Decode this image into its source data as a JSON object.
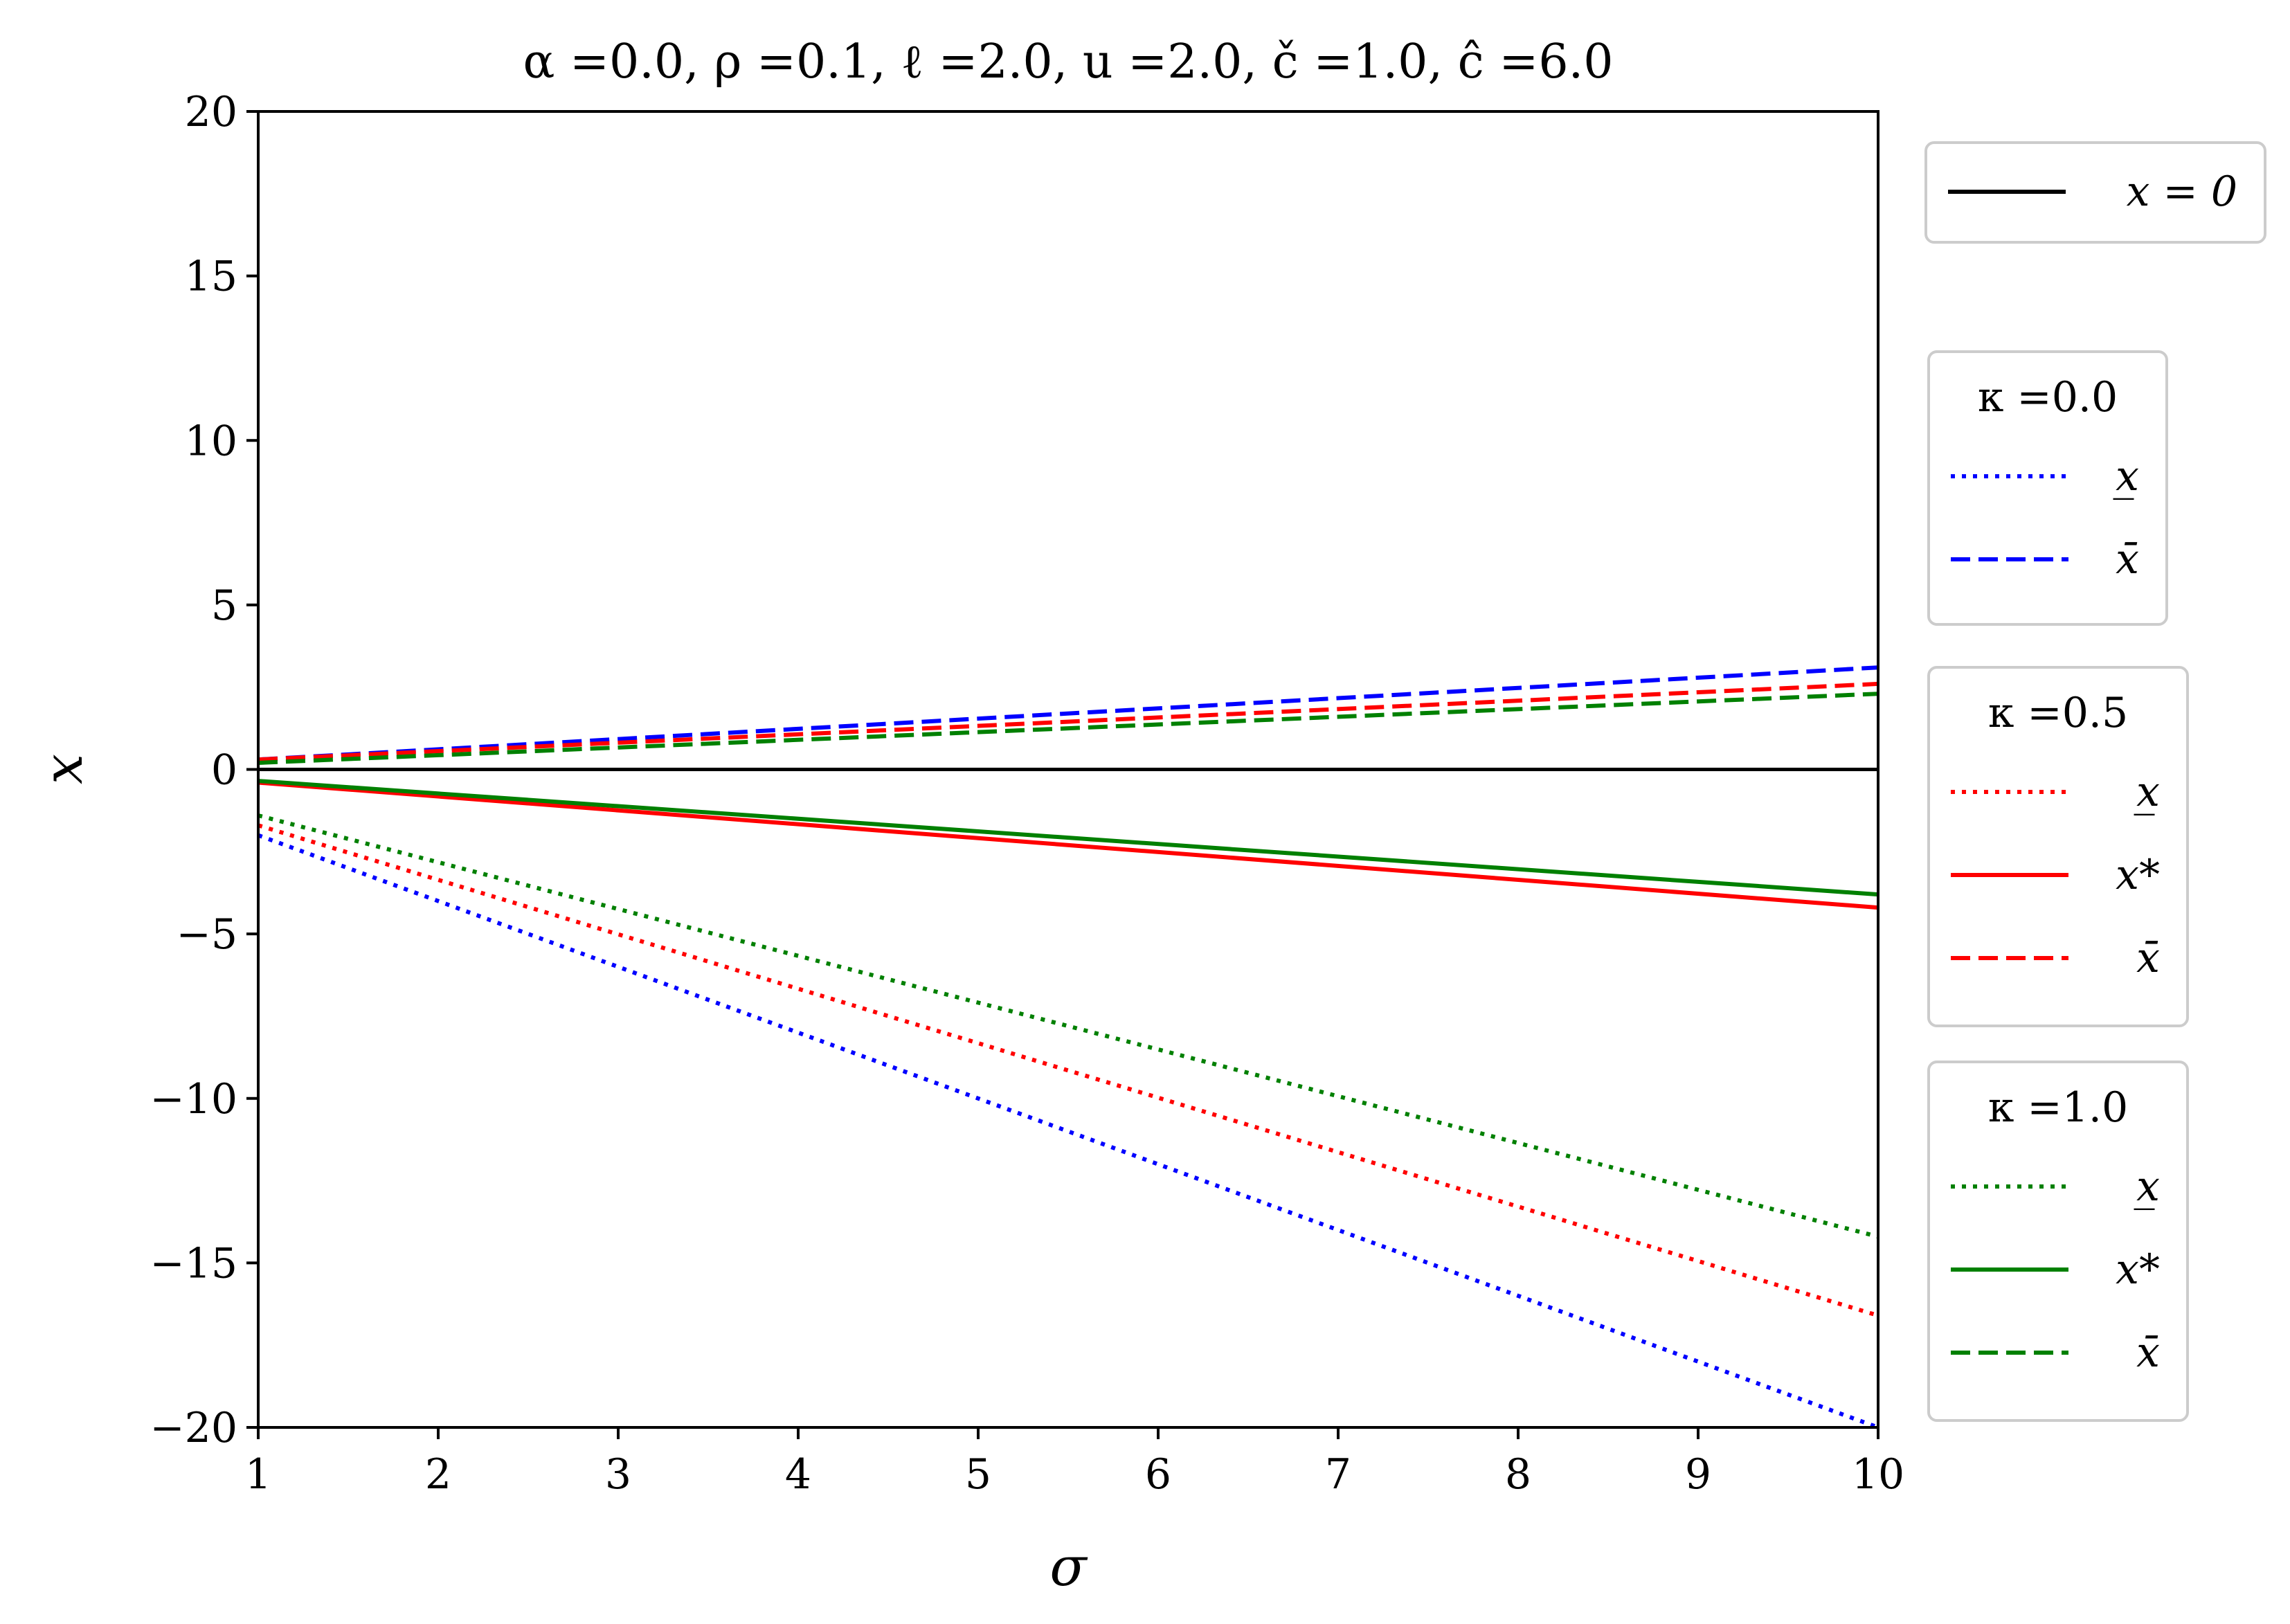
{
  "chart_data": {
    "type": "line",
    "title": "α =0.0, ρ =0.1, ℓ =2.0, u =2.0, č =1.0, ĉ =6.0",
    "xlabel": "σ",
    "ylabel": "x",
    "xlim": [
      1,
      10
    ],
    "ylim": [
      -20,
      20
    ],
    "xticks": [
      "1",
      "2",
      "3",
      "4",
      "5",
      "6",
      "7",
      "8",
      "9",
      "10"
    ],
    "yticks": [
      "−20",
      "−15",
      "−10",
      "−5",
      "0",
      "5",
      "10",
      "15",
      "20"
    ],
    "xtick_values": [
      1,
      2,
      3,
      4,
      5,
      6,
      7,
      8,
      9,
      10
    ],
    "ytick_values": [
      -20,
      -15,
      -10,
      -5,
      0,
      5,
      10,
      15,
      20
    ],
    "grid": false,
    "legend_placement": "right, outside plot",
    "x": [
      1,
      10
    ],
    "series": [
      {
        "name": "x = 0",
        "group": "top",
        "color": "#000000",
        "style": "solid",
        "values": [
          0,
          0
        ]
      },
      {
        "name": "x̲",
        "group": "κ =0.0",
        "color": "#0000ff",
        "style": "dotted",
        "values": [
          -2.0,
          -20.0
        ]
      },
      {
        "name": "x̄",
        "group": "κ =0.0",
        "color": "#0000ff",
        "style": "dashed",
        "values": [
          0.3,
          3.1
        ]
      },
      {
        "name": "x̲",
        "group": "κ =0.5",
        "color": "#ff0000",
        "style": "dotted",
        "values": [
          -1.7,
          -16.6
        ]
      },
      {
        "name": "x*",
        "group": "κ =0.5",
        "color": "#ff0000",
        "style": "solid",
        "values": [
          -0.4,
          -4.2
        ]
      },
      {
        "name": "x̄",
        "group": "κ =0.5",
        "color": "#ff0000",
        "style": "dashed",
        "values": [
          0.3,
          2.6
        ]
      },
      {
        "name": "x̲",
        "group": "κ =1.0",
        "color": "#008000",
        "style": "dotted",
        "values": [
          -1.4,
          -14.2
        ]
      },
      {
        "name": "x*",
        "group": "κ =1.0",
        "color": "#008000",
        "style": "solid",
        "values": [
          -0.35,
          -3.8
        ]
      },
      {
        "name": "x̄",
        "group": "κ =1.0",
        "color": "#008000",
        "style": "dashed",
        "values": [
          0.2,
          2.3
        ]
      }
    ],
    "legends": [
      {
        "title": "",
        "entries": [
          {
            "label": "x = 0",
            "color": "#000000",
            "style": "solid"
          }
        ]
      },
      {
        "title": "κ =0.0",
        "entries": [
          {
            "label": "x̲",
            "color": "#0000ff",
            "style": "dotted"
          },
          {
            "label": "x̄",
            "color": "#0000ff",
            "style": "dashed"
          }
        ]
      },
      {
        "title": "κ =0.5",
        "entries": [
          {
            "label": "x̲",
            "color": "#ff0000",
            "style": "dotted"
          },
          {
            "label": "x*",
            "color": "#ff0000",
            "style": "solid"
          },
          {
            "label": "x̄",
            "color": "#ff0000",
            "style": "dashed"
          }
        ]
      },
      {
        "title": "κ =1.0",
        "entries": [
          {
            "label": "x̲",
            "color": "#008000",
            "style": "dotted"
          },
          {
            "label": "x*",
            "color": "#008000",
            "style": "solid"
          },
          {
            "label": "x̄",
            "color": "#008000",
            "style": "dashed"
          }
        ]
      }
    ]
  }
}
